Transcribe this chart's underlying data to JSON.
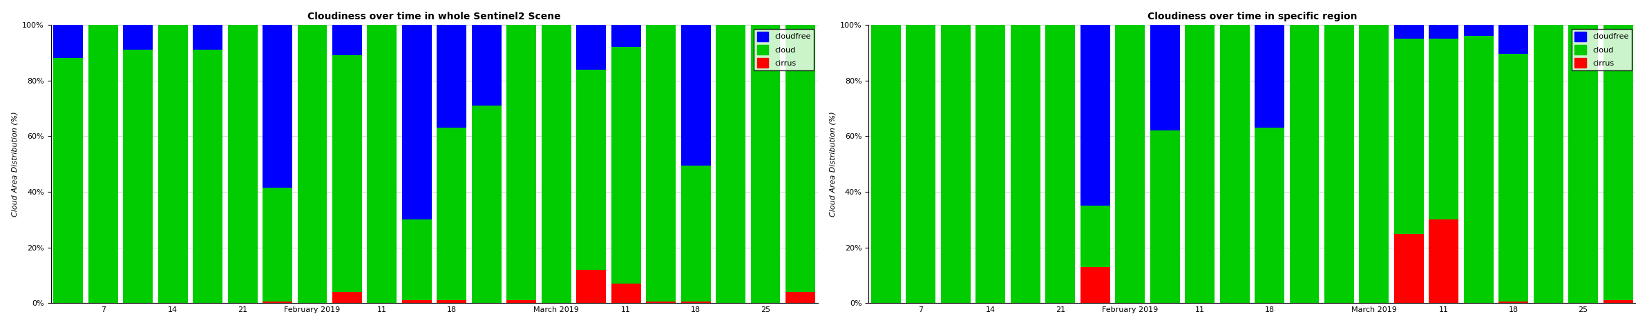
{
  "chart1": {
    "title": "Cloudiness over time in whole Sentinel2 Scene",
    "ylabel": "Cloud Area Distribution (%)",
    "bars": [
      {
        "cirrus": 0.0,
        "cloud": 88.0,
        "cloudfree": 12.0,
        "tick": ""
      },
      {
        "cirrus": 0.0,
        "cloud": 100.0,
        "cloudfree": 0.0,
        "tick": "7"
      },
      {
        "cirrus": 0.0,
        "cloud": 91.0,
        "cloudfree": 9.0,
        "tick": ""
      },
      {
        "cirrus": 0.0,
        "cloud": 100.0,
        "cloudfree": 0.0,
        "tick": "14"
      },
      {
        "cirrus": 0.0,
        "cloud": 91.0,
        "cloudfree": 9.0,
        "tick": ""
      },
      {
        "cirrus": 0.0,
        "cloud": 100.0,
        "cloudfree": 0.0,
        "tick": "21"
      },
      {
        "cirrus": 0.5,
        "cloud": 41.0,
        "cloudfree": 58.5,
        "tick": ""
      },
      {
        "cirrus": 0.0,
        "cloud": 100.0,
        "cloudfree": 0.0,
        "tick": "February 2019"
      },
      {
        "cirrus": 4.0,
        "cloud": 85.0,
        "cloudfree": 11.0,
        "tick": ""
      },
      {
        "cirrus": 0.0,
        "cloud": 100.0,
        "cloudfree": 0.0,
        "tick": "11"
      },
      {
        "cirrus": 1.0,
        "cloud": 29.0,
        "cloudfree": 70.0,
        "tick": ""
      },
      {
        "cirrus": 1.0,
        "cloud": 62.0,
        "cloudfree": 37.0,
        "tick": "18"
      },
      {
        "cirrus": 0.0,
        "cloud": 71.0,
        "cloudfree": 29.0,
        "tick": ""
      },
      {
        "cirrus": 1.0,
        "cloud": 99.0,
        "cloudfree": 0.0,
        "tick": ""
      },
      {
        "cirrus": 0.0,
        "cloud": 100.0,
        "cloudfree": 0.0,
        "tick": "March 2019"
      },
      {
        "cirrus": 12.0,
        "cloud": 72.0,
        "cloudfree": 16.0,
        "tick": ""
      },
      {
        "cirrus": 7.0,
        "cloud": 85.0,
        "cloudfree": 8.0,
        "tick": "11"
      },
      {
        "cirrus": 0.5,
        "cloud": 99.5,
        "cloudfree": 0.0,
        "tick": ""
      },
      {
        "cirrus": 0.5,
        "cloud": 49.0,
        "cloudfree": 50.5,
        "tick": "18"
      },
      {
        "cirrus": 0.0,
        "cloud": 100.0,
        "cloudfree": 0.0,
        "tick": ""
      },
      {
        "cirrus": 0.0,
        "cloud": 100.0,
        "cloudfree": 0.0,
        "tick": "25"
      },
      {
        "cirrus": 4.0,
        "cloud": 96.0,
        "cloudfree": 0.0,
        "tick": ""
      }
    ]
  },
  "chart2": {
    "title": "Cloudiness over time in specific region",
    "ylabel": "Cloud Area Distribution (%)",
    "bars": [
      {
        "cirrus": 0.0,
        "cloud": 100.0,
        "cloudfree": 0.0,
        "tick": ""
      },
      {
        "cirrus": 0.0,
        "cloud": 100.0,
        "cloudfree": 0.0,
        "tick": "7"
      },
      {
        "cirrus": 0.0,
        "cloud": 100.0,
        "cloudfree": 0.0,
        "tick": ""
      },
      {
        "cirrus": 0.0,
        "cloud": 100.0,
        "cloudfree": 0.0,
        "tick": "14"
      },
      {
        "cirrus": 0.0,
        "cloud": 100.0,
        "cloudfree": 0.0,
        "tick": ""
      },
      {
        "cirrus": 0.0,
        "cloud": 100.0,
        "cloudfree": 0.0,
        "tick": "21"
      },
      {
        "cirrus": 13.0,
        "cloud": 22.0,
        "cloudfree": 65.0,
        "tick": ""
      },
      {
        "cirrus": 0.0,
        "cloud": 100.0,
        "cloudfree": 0.0,
        "tick": "February 2019"
      },
      {
        "cirrus": 0.0,
        "cloud": 62.0,
        "cloudfree": 38.0,
        "tick": ""
      },
      {
        "cirrus": 0.0,
        "cloud": 100.0,
        "cloudfree": 0.0,
        "tick": "11"
      },
      {
        "cirrus": 0.0,
        "cloud": 100.0,
        "cloudfree": 0.0,
        "tick": ""
      },
      {
        "cirrus": 0.0,
        "cloud": 63.0,
        "cloudfree": 37.0,
        "tick": "18"
      },
      {
        "cirrus": 0.0,
        "cloud": 100.0,
        "cloudfree": 0.0,
        "tick": ""
      },
      {
        "cirrus": 0.0,
        "cloud": 100.0,
        "cloudfree": 0.0,
        "tick": ""
      },
      {
        "cirrus": 0.0,
        "cloud": 100.0,
        "cloudfree": 0.0,
        "tick": "March 2019"
      },
      {
        "cirrus": 25.0,
        "cloud": 70.0,
        "cloudfree": 5.0,
        "tick": ""
      },
      {
        "cirrus": 30.0,
        "cloud": 65.0,
        "cloudfree": 5.0,
        "tick": "11"
      },
      {
        "cirrus": 0.0,
        "cloud": 96.0,
        "cloudfree": 4.0,
        "tick": ""
      },
      {
        "cirrus": 0.5,
        "cloud": 89.0,
        "cloudfree": 10.5,
        "tick": "18"
      },
      {
        "cirrus": 0.0,
        "cloud": 100.0,
        "cloudfree": 0.0,
        "tick": ""
      },
      {
        "cirrus": 0.0,
        "cloud": 100.0,
        "cloudfree": 0.0,
        "tick": "25"
      },
      {
        "cirrus": 1.0,
        "cloud": 99.0,
        "cloudfree": 0.0,
        "tick": ""
      }
    ]
  },
  "colors": {
    "cloudfree": "#0000ff",
    "cloud": "#00cc00",
    "cirrus": "#ff0000"
  }
}
